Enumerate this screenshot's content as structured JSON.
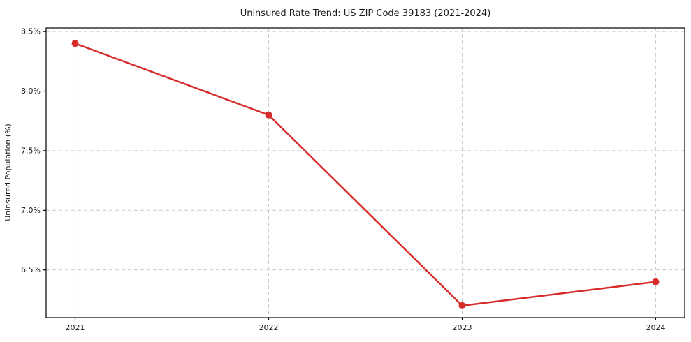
{
  "chart_data": {
    "type": "line",
    "title": "Uninsured Rate Trend: US ZIP Code 39183 (2021-2024)",
    "xlabel": "",
    "ylabel": "Uninsured Population (%)",
    "x": [
      2021,
      2022,
      2023,
      2024
    ],
    "values": [
      8.4,
      7.8,
      6.2,
      6.4
    ],
    "x_tick_labels": [
      "2021",
      "2022",
      "2023",
      "2024"
    ],
    "y_ticks": [
      {
        "value": 6.5,
        "label": "6.5%"
      },
      {
        "value": 7.0,
        "label": "7.0%"
      },
      {
        "value": 7.5,
        "label": "7.5%"
      },
      {
        "value": 8.0,
        "label": "8.0%"
      },
      {
        "value": 8.5,
        "label": "8.5%"
      }
    ],
    "xlim": [
      2020.85,
      2024.15
    ],
    "ylim": [
      6.1,
      8.53
    ],
    "grid": "dashed, both axes",
    "legend": "none",
    "colors": {
      "line": "#d62c2c",
      "marker": "#d62c2c",
      "grid": "#cccccc",
      "spine": "#000000",
      "text": "#1a1a1a",
      "background": "#ffffff"
    }
  }
}
